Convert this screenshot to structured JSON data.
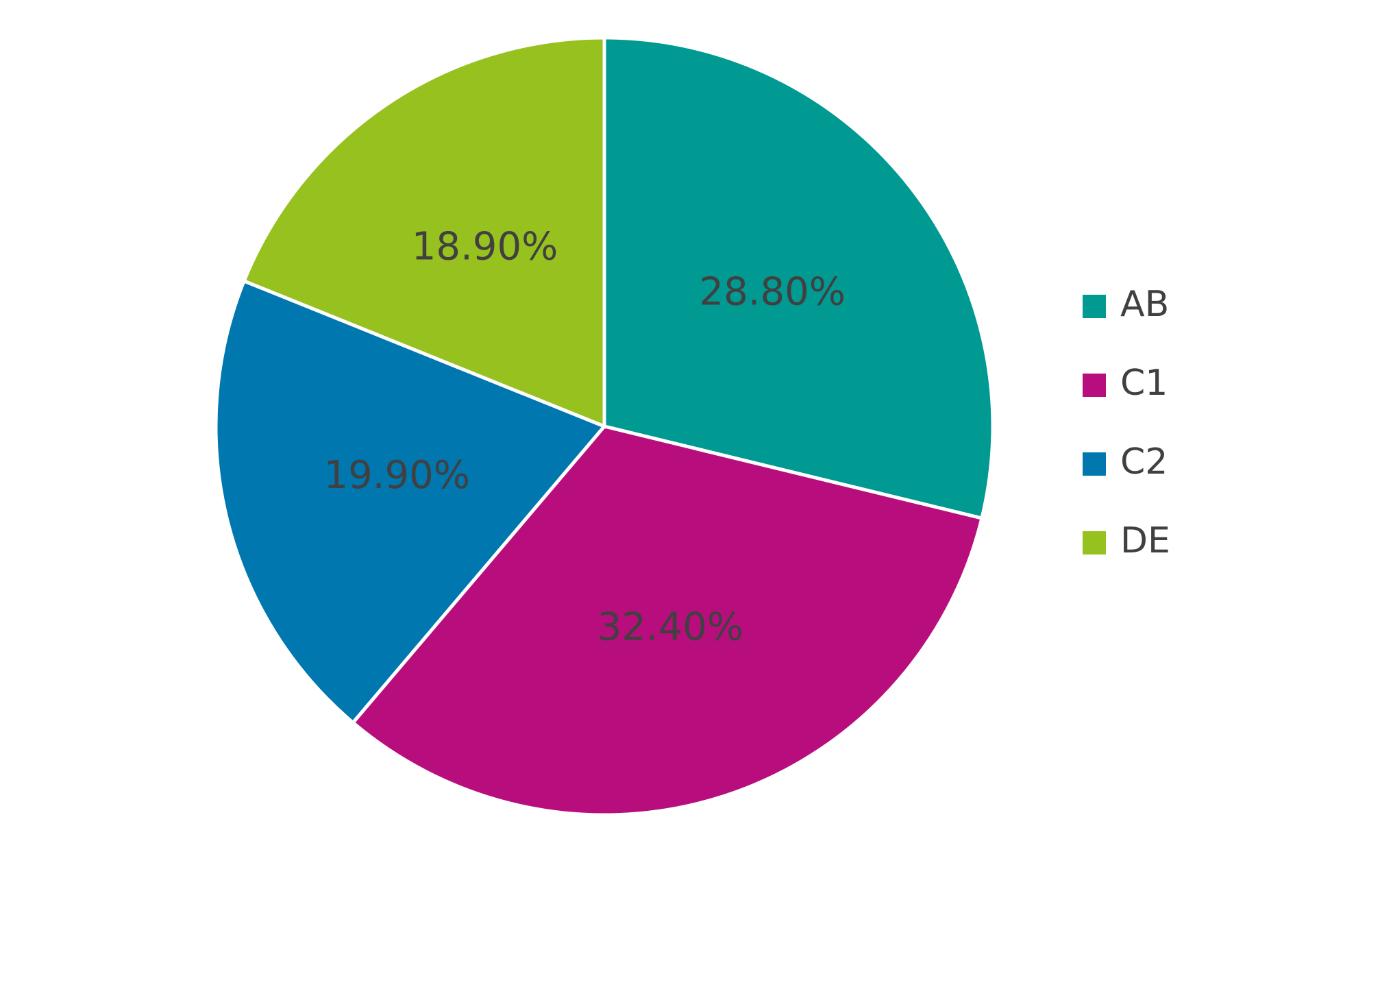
{
  "chart_data": {
    "type": "pie",
    "categories": [
      "AB",
      "C1",
      "C2",
      "DE"
    ],
    "values": [
      28.8,
      32.4,
      19.9,
      18.9
    ],
    "value_labels": [
      "28.80%",
      "32.40%",
      "19.90%",
      "18.90%"
    ],
    "colors": [
      "#009a93",
      "#b80e7d",
      "#0077ae",
      "#97c11f"
    ],
    "legend": "right"
  }
}
